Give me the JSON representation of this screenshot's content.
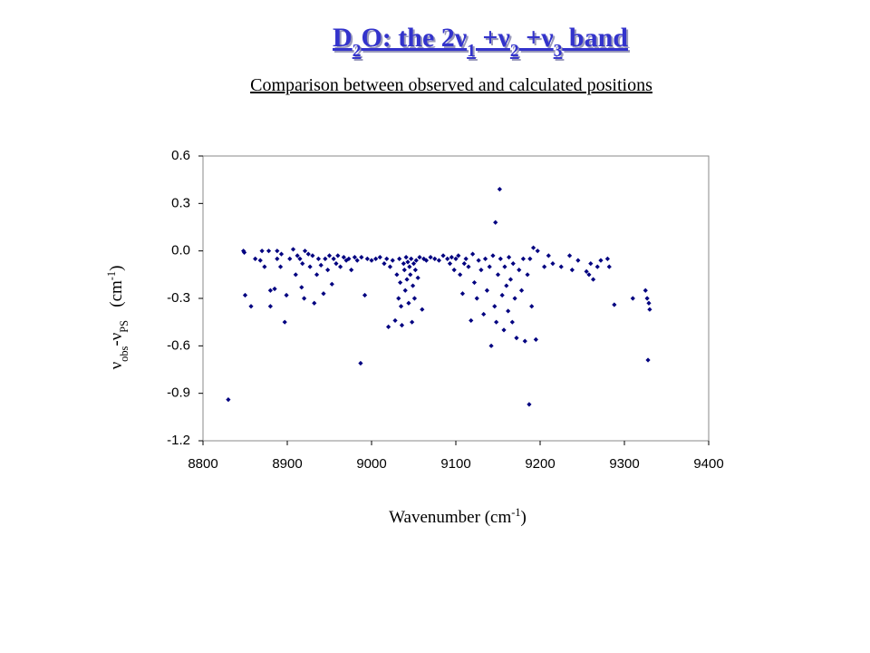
{
  "chart_data": {
    "type": "scatter",
    "title": [
      {
        "text": "D"
      },
      {
        "text": "2",
        "script": "sub"
      },
      {
        "text": "O: the 2ν"
      },
      {
        "text": "1",
        "script": "sub"
      },
      {
        "text": " +ν"
      },
      {
        "text": "2",
        "script": "sub"
      },
      {
        "text": " +ν"
      },
      {
        "text": "3",
        "script": "sub"
      },
      {
        "text": " band"
      }
    ],
    "subtitle": "Comparison between observed and calculated positions",
    "x_label": [
      {
        "text": "Wavenumber (cm"
      },
      {
        "text": "-1",
        "script": "super"
      },
      {
        "text": ")"
      }
    ],
    "y_label": [
      {
        "text": "ν"
      },
      {
        "text": "obs",
        "script": "sub"
      },
      {
        "text": "-ν"
      },
      {
        "text": "PS",
        "script": "sub"
      },
      {
        "text": "   (cm"
      },
      {
        "text": "-1",
        "script": "super"
      },
      {
        "text": ")"
      }
    ],
    "color": "#000080",
    "xlim": [
      8800,
      9400
    ],
    "xticks": [
      8800,
      8900,
      9000,
      9100,
      9200,
      9300,
      9400
    ],
    "ylim": [
      -1.2,
      0.6
    ],
    "yticks": [
      {
        "value": -1.2,
        "label": "-1.2"
      },
      {
        "value": -0.9,
        "label": "-0.9"
      },
      {
        "value": -0.6,
        "label": "-0.6"
      },
      {
        "value": -0.3,
        "label": "-0.3"
      },
      {
        "value": 0,
        "label": "0.0"
      },
      {
        "value": 0.3,
        "label": "0.3"
      },
      {
        "value": 0.6,
        "label": "0.6"
      }
    ],
    "grid": false,
    "x": [
      8830,
      8848,
      8849,
      8850,
      8857,
      8862,
      8868,
      8870,
      8873,
      8878,
      8880,
      8880,
      8885,
      8888,
      8888,
      8892,
      8893,
      8897,
      8899,
      8903,
      8907,
      8910,
      8912,
      8915,
      8917,
      8918,
      8920,
      8921,
      8925,
      8927,
      8930,
      8932,
      8935,
      8937,
      8940,
      8943,
      8945,
      8948,
      8950,
      8953,
      8955,
      8958,
      8960,
      8963,
      8967,
      8970,
      8973,
      8976,
      8980,
      8983,
      8987,
      8988,
      8992,
      8995,
      9000,
      9005,
      9010,
      9015,
      9018,
      9020,
      9022,
      9025,
      9028,
      9030,
      9032,
      9033,
      9034,
      9035,
      9036,
      9038,
      9039,
      9040,
      9041,
      9042,
      9043,
      9044,
      9045,
      9046,
      9047,
      9048,
      9049,
      9050,
      9051,
      9052,
      9053,
      9055,
      9057,
      9060,
      9062,
      9065,
      9070,
      9075,
      9080,
      9085,
      9090,
      9093,
      9095,
      9098,
      9100,
      9103,
      9105,
      9108,
      9110,
      9112,
      9115,
      9118,
      9120,
      9122,
      9125,
      9127,
      9130,
      9133,
      9135,
      9137,
      9140,
      9142,
      9144,
      9146,
      9147,
      9148,
      9150,
      9152,
      9153,
      9155,
      9157,
      9158,
      9160,
      9162,
      9163,
      9165,
      9167,
      9168,
      9170,
      9172,
      9175,
      9178,
      9180,
      9182,
      9185,
      9187,
      9188,
      9190,
      9192,
      9195,
      9197,
      9205,
      9210,
      9215,
      9225,
      9235,
      9238,
      9245,
      9255,
      9258,
      9260,
      9263,
      9268,
      9272,
      9280,
      9282,
      9288,
      9310,
      9325,
      9327,
      9328,
      9329,
      9330
    ],
    "y": [
      -0.94,
      0.0,
      -0.01,
      -0.28,
      -0.35,
      -0.05,
      -0.06,
      0.0,
      -0.1,
      0.0,
      -0.25,
      -0.35,
      -0.24,
      0.0,
      -0.05,
      -0.1,
      -0.02,
      -0.45,
      -0.28,
      -0.05,
      0.01,
      -0.15,
      -0.03,
      -0.05,
      -0.23,
      -0.08,
      -0.3,
      0.0,
      -0.02,
      -0.1,
      -0.03,
      -0.33,
      -0.15,
      -0.05,
      -0.09,
      -0.27,
      -0.05,
      -0.12,
      -0.03,
      -0.21,
      -0.05,
      -0.08,
      -0.03,
      -0.1,
      -0.04,
      -0.06,
      -0.05,
      -0.12,
      -0.04,
      -0.06,
      -0.71,
      -0.04,
      -0.28,
      -0.05,
      -0.06,
      -0.05,
      -0.04,
      -0.08,
      -0.05,
      -0.48,
      -0.1,
      -0.06,
      -0.44,
      -0.15,
      -0.3,
      -0.05,
      -0.2,
      -0.35,
      -0.47,
      -0.08,
      -0.12,
      -0.25,
      -0.04,
      -0.18,
      -0.07,
      -0.33,
      -0.1,
      -0.15,
      -0.05,
      -0.45,
      -0.22,
      -0.08,
      -0.3,
      -0.12,
      -0.06,
      -0.17,
      -0.04,
      -0.37,
      -0.05,
      -0.06,
      -0.04,
      -0.05,
      -0.06,
      -0.03,
      -0.05,
      -0.08,
      -0.04,
      -0.12,
      -0.05,
      -0.03,
      -0.15,
      -0.27,
      -0.08,
      -0.05,
      -0.1,
      -0.44,
      -0.02,
      -0.2,
      -0.3,
      -0.06,
      -0.12,
      -0.4,
      -0.05,
      -0.25,
      -0.1,
      -0.6,
      -0.03,
      -0.35,
      0.18,
      -0.45,
      -0.15,
      0.39,
      -0.05,
      -0.28,
      -0.5,
      -0.1,
      -0.22,
      -0.38,
      -0.04,
      -0.18,
      -0.45,
      -0.08,
      -0.3,
      -0.55,
      -0.12,
      -0.25,
      -0.05,
      -0.57,
      -0.15,
      -0.97,
      -0.05,
      -0.35,
      0.02,
      -0.56,
      0.0,
      -0.1,
      -0.03,
      -0.08,
      -0.1,
      -0.03,
      -0.12,
      -0.06,
      -0.13,
      -0.15,
      -0.08,
      -0.18,
      -0.1,
      -0.06,
      -0.05,
      -0.1,
      -0.34,
      -0.3,
      -0.25,
      -0.3,
      -0.69,
      -0.33,
      -0.37
    ]
  }
}
